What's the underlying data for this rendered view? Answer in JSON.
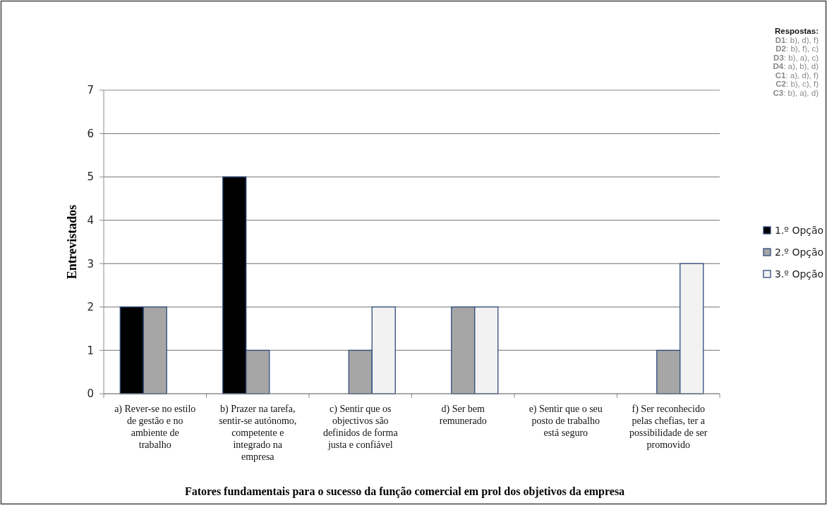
{
  "chart_data": {
    "type": "bar",
    "xlabel": "Fatores fundamentais para o sucesso da função comercial em prol dos objetivos da empresa",
    "ylabel": "Entrevistados",
    "categories": [
      "a) Rever-se no estilo de gestão e no ambiente de trabalho",
      "b) Prazer na tarefa, sentir-se autónomo, competente e integrado na empresa",
      "c) Sentir que os objectivos são definidos de forma justa e confiável",
      "d) Ser bem remunerado",
      "e) Sentir que o seu posto de trabalho está seguro",
      "f) Ser reconhecido pelas chefias, ter a possibilidade de ser promovido"
    ],
    "series": [
      {
        "name": "1.º Opção",
        "color": "#000000",
        "values": [
          2,
          5,
          0,
          0,
          0,
          0
        ]
      },
      {
        "name": "2.º Opção",
        "color": "#a6a6a6",
        "values": [
          2,
          1,
          1,
          2,
          0,
          1
        ]
      },
      {
        "name": "3.º Opção",
        "color": "#f2f2f2",
        "values": [
          0,
          0,
          2,
          2,
          0,
          3
        ]
      }
    ],
    "ylim": [
      0,
      7
    ],
    "yticks": [
      0,
      1,
      2,
      3,
      4,
      5,
      6,
      7
    ],
    "grid": "y",
    "legend": "right",
    "annotations": [
      "Respostas:",
      "D1: b), d), f)",
      "D2: b), f), c)",
      "D3: b), a), c)",
      "D4: a), b), d)",
      "C1: a), d), f)",
      "C2: b), c), f)",
      "C3: b), a), d)"
    ]
  }
}
